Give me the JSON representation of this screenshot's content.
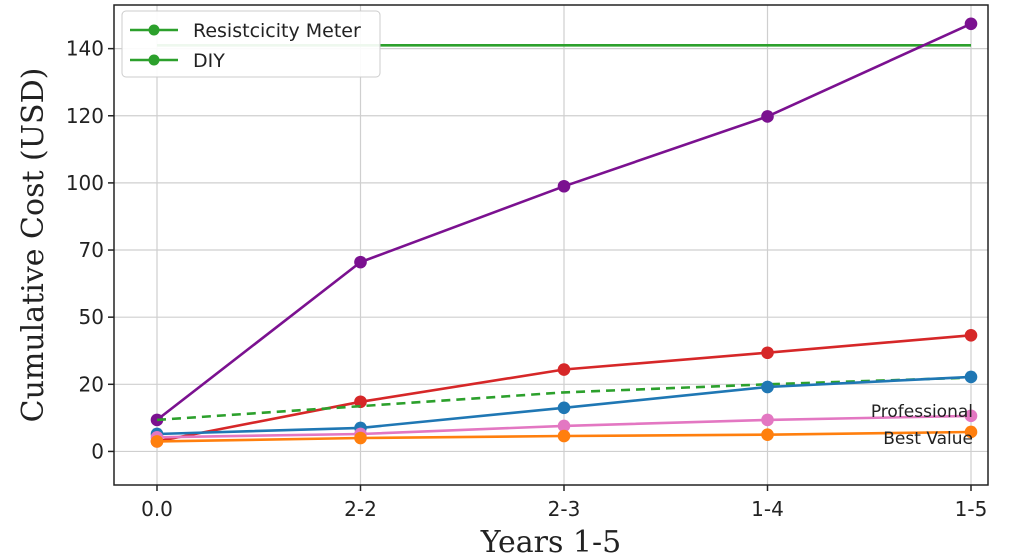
{
  "chart_data": {
    "type": "line",
    "title": "",
    "xlabel": "Years 1-5",
    "ylabel": "Cumulative Cost (USD)",
    "categories": [
      "0.0",
      "2-2",
      "2-3",
      "1-4",
      "1-5"
    ],
    "yticks": [
      {
        "value": 0,
        "label": "0"
      },
      {
        "value": 1,
        "label": "20"
      },
      {
        "value": 2,
        "label": "50"
      },
      {
        "value": 3,
        "label": "70"
      },
      {
        "value": 4,
        "label": "100"
      },
      {
        "value": 5,
        "label": "120"
      },
      {
        "value": 6,
        "label": "140"
      }
    ],
    "ylim": [
      -0.5,
      6.65
    ],
    "grid": true,
    "legend_position": "top-left",
    "legend": [
      {
        "label": "Resistcicity Meter",
        "color": "#2ca02c"
      },
      {
        "label": "DIY",
        "color": "#2ca02c"
      }
    ],
    "series": [
      {
        "color": "#2ca02c",
        "style": "solid",
        "marker": false,
        "values": [
          6.05,
          6.05,
          6.05,
          6.05,
          6.05
        ]
      },
      {
        "color": "#7b1190",
        "style": "solid",
        "marker": true,
        "values": [
          0.47,
          2.82,
          3.95,
          4.99,
          6.37
        ]
      },
      {
        "color": "#d62728",
        "style": "solid",
        "marker": true,
        "values": [
          0.15,
          0.74,
          1.22,
          1.47,
          1.73
        ]
      },
      {
        "color": "#2ca02c",
        "style": "dashed",
        "marker": false,
        "values": [
          0.47,
          null,
          0.88,
          1.0,
          1.1
        ]
      },
      {
        "color": "#1f77b4",
        "style": "solid",
        "marker": true,
        "values": [
          0.26,
          0.35,
          0.65,
          0.96,
          1.11
        ]
      },
      {
        "color": "#e377c2",
        "style": "solid",
        "marker": true,
        "values": [
          0.21,
          0.26,
          0.38,
          0.47,
          0.53
        ]
      },
      {
        "color": "#ff7f0e",
        "style": "solid",
        "marker": true,
        "values": [
          0.15,
          0.2,
          0.23,
          0.25,
          0.29
        ]
      }
    ],
    "annotations": [
      {
        "text": "Professional"
      },
      {
        "text": "Best Value"
      }
    ]
  }
}
